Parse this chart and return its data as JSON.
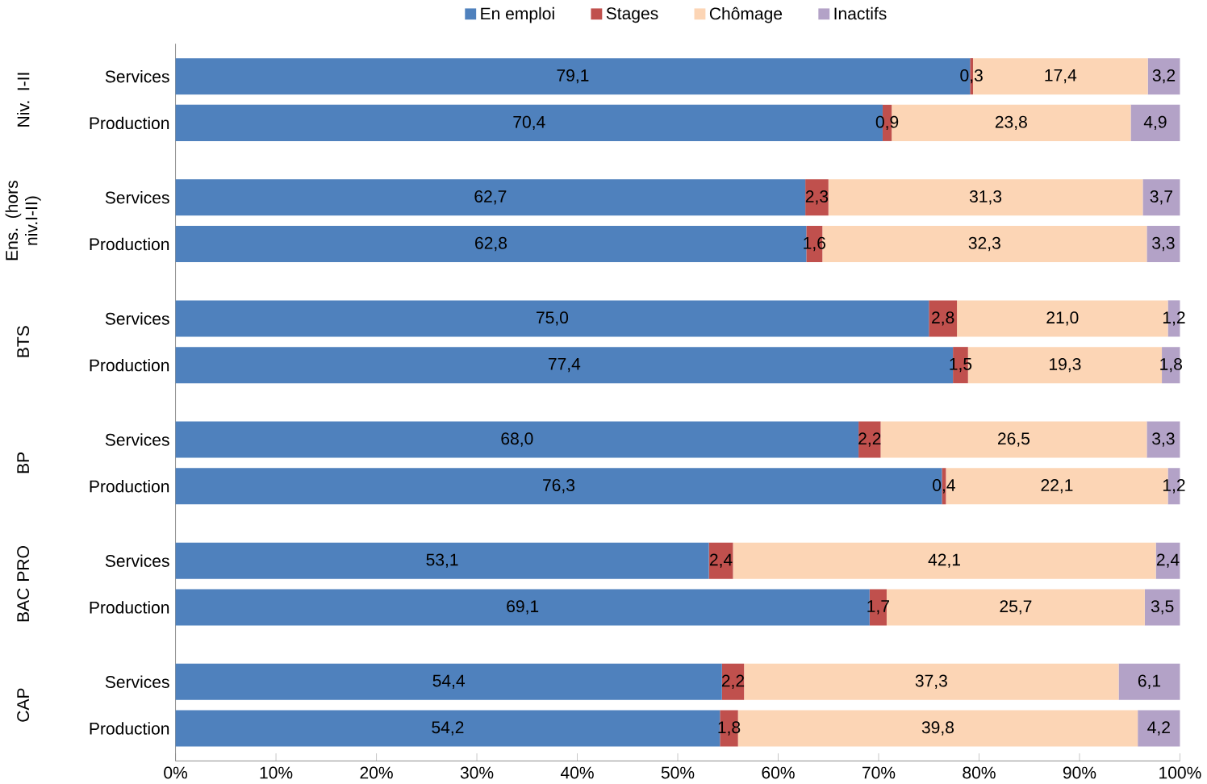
{
  "chart_data": {
    "type": "bar",
    "orientation": "horizontal",
    "stacked": true,
    "categories": [
      "Services",
      "Production",
      "Services",
      "Production",
      "Services",
      "Production",
      "Services",
      "Production",
      "Services",
      "Production",
      "Services",
      "Production"
    ],
    "annotations": [
      "Niv. I-II",
      "Ens. (hors niv.I-II)",
      "BTS",
      "BP",
      "BAC PRO",
      "CAP"
    ],
    "series": [
      {
        "name": "En emploi",
        "color": "#4f81bd",
        "values": [
          79.1,
          70.4,
          62.7,
          62.8,
          75.0,
          77.4,
          68.0,
          76.3,
          53.1,
          69.1,
          54.4,
          54.2
        ],
        "value_labels": [
          "79,1",
          "70,4",
          "62,7",
          "62,8",
          "75,0",
          "77,4",
          "68,0",
          "76,3",
          "53,1",
          "69,1",
          "54,4",
          "54,2"
        ]
      },
      {
        "name": "Stages",
        "color": "#c0504d",
        "values": [
          0.3,
          0.9,
          2.3,
          1.6,
          2.8,
          1.5,
          2.2,
          0.4,
          2.4,
          1.7,
          2.2,
          1.8
        ],
        "value_labels": [
          "0,3",
          "0,9",
          "2,3",
          "1,6",
          "2,8",
          "1,5",
          "2,2",
          "0,4",
          "2,4",
          "1,7",
          "2,2",
          "1,8"
        ]
      },
      {
        "name": "Chômage",
        "color": "#fcd5b5",
        "values": [
          17.4,
          23.8,
          31.3,
          32.3,
          21.0,
          19.3,
          26.5,
          22.1,
          42.1,
          25.7,
          37.3,
          39.8
        ],
        "value_labels": [
          "17,4",
          "23,8",
          "31,3",
          "32,3",
          "21,0",
          "19,3",
          "26,5",
          "22,1",
          "42,1",
          "25,7",
          "37,3",
          "39,8"
        ]
      },
      {
        "name": "Inactifs",
        "color": "#b3a2c7",
        "values": [
          3.2,
          4.9,
          3.7,
          3.3,
          1.2,
          1.8,
          3.3,
          1.2,
          2.4,
          3.5,
          6.1,
          4.2
        ],
        "value_labels": [
          "3,2",
          "4,9",
          "3,7",
          "3,3",
          "1,2",
          "1,8",
          "3,3",
          "1,2",
          "2,4",
          "3,5",
          "6,1",
          "4,2"
        ]
      }
    ],
    "xlim": [
      0,
      100
    ],
    "xticks": [
      {
        "value": 0,
        "label": "0%"
      },
      {
        "value": 10,
        "label": "10%"
      },
      {
        "value": 20,
        "label": "20%"
      },
      {
        "value": 30,
        "label": "30%"
      },
      {
        "value": 40,
        "label": "40%"
      },
      {
        "value": 50,
        "label": "50%"
      },
      {
        "value": 60,
        "label": "60%"
      },
      {
        "value": 70,
        "label": "70%"
      },
      {
        "value": 80,
        "label": "80%"
      },
      {
        "value": 90,
        "label": "90%"
      },
      {
        "value": 100,
        "label": "100%"
      }
    ],
    "legend": "top",
    "grid": false
  }
}
